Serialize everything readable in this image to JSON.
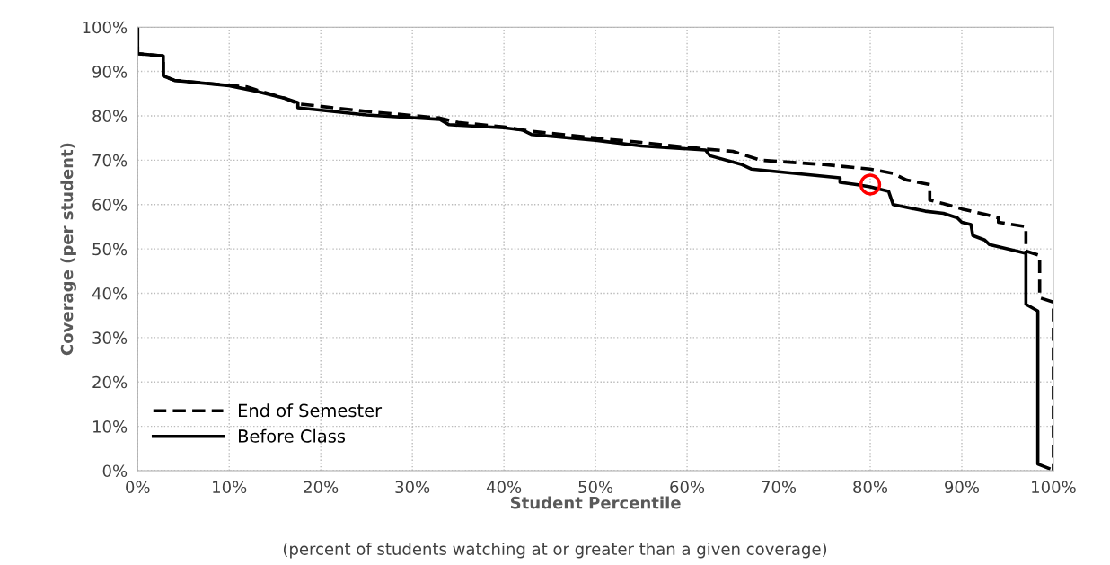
{
  "chart_data": {
    "type": "line",
    "xlabel": "Student Percentile",
    "ylabel": "Coverage (per student)",
    "annotations": [
      "(percent of students watching at or greater than a given coverage)"
    ],
    "xlim": [
      0,
      100
    ],
    "ylim": [
      0,
      100
    ],
    "xticks": [
      {
        "value": 0,
        "label": "0%"
      },
      {
        "value": 10,
        "label": "10%"
      },
      {
        "value": 20,
        "label": "20%"
      },
      {
        "value": 30,
        "label": "30%"
      },
      {
        "value": 40,
        "label": "40%"
      },
      {
        "value": 50,
        "label": "50%"
      },
      {
        "value": 60,
        "label": "60%"
      },
      {
        "value": 70,
        "label": "70%"
      },
      {
        "value": 80,
        "label": "80%"
      },
      {
        "value": 90,
        "label": "90%"
      },
      {
        "value": 100,
        "label": "100%"
      }
    ],
    "yticks": [
      {
        "value": 0,
        "label": "0%"
      },
      {
        "value": 10,
        "label": "10%"
      },
      {
        "value": 20,
        "label": "20%"
      },
      {
        "value": 30,
        "label": "30%"
      },
      {
        "value": 40,
        "label": "40%"
      },
      {
        "value": 50,
        "label": "50%"
      },
      {
        "value": 60,
        "label": "60%"
      },
      {
        "value": 70,
        "label": "70%"
      },
      {
        "value": 80,
        "label": "80%"
      },
      {
        "value": 90,
        "label": "90%"
      },
      {
        "value": 100,
        "label": "100%"
      }
    ],
    "grid": true,
    "legend": "bottom left",
    "series": [
      {
        "name": "End of Semester",
        "color": "#000000",
        "line_style": "dashed",
        "x": [
          0,
          0,
          2.8,
          2.8,
          4,
          12,
          13,
          16,
          17.5,
          25,
          33,
          35,
          40,
          43,
          50,
          55,
          62,
          65,
          68,
          75,
          80,
          82.5,
          84,
          86.5,
          86.5,
          88,
          90,
          92.5,
          94,
          94,
          97,
          97,
          98.5,
          98.5,
          100,
          100
        ],
        "values": [
          100,
          94,
          93.5,
          89,
          88,
          86.5,
          85.8,
          84,
          82.7,
          81,
          79.5,
          78.5,
          77.5,
          76.5,
          75,
          74,
          72.5,
          72,
          70,
          69,
          68,
          67,
          65.5,
          64.5,
          61,
          60.2,
          59,
          57.8,
          57,
          56,
          55,
          49.5,
          48.5,
          39,
          38,
          0
        ]
      },
      {
        "name": "Before Class",
        "color": "#000000",
        "line_style": "solid",
        "x": [
          0,
          0,
          2.8,
          2.8,
          4,
          10,
          13,
          16,
          17.5,
          17.5,
          25,
          33,
          34,
          40,
          42,
          43,
          50,
          55,
          62,
          62.5,
          66,
          67,
          76.7,
          76.7,
          78.5,
          80,
          82,
          82.5,
          86,
          88,
          89.5,
          90,
          91,
          91.2,
          92.5,
          93,
          97,
          97,
          98.3,
          98.3,
          99.5
        ],
        "values": [
          100,
          94,
          93.5,
          89,
          88,
          86.8,
          85.5,
          84,
          83,
          81.8,
          80.2,
          79.2,
          78,
          77.3,
          76.8,
          75.8,
          74.5,
          73.2,
          72.3,
          71,
          69,
          68,
          66,
          65,
          64.5,
          64,
          63,
          60,
          58.5,
          58,
          57,
          56,
          55.5,
          53,
          52,
          51,
          49,
          37.5,
          36,
          1.5,
          0.5
        ]
      },
      {
        "type": "scatter",
        "color": "#ff0000",
        "marker": "circle",
        "x": [
          80
        ],
        "values": [
          64.5
        ]
      }
    ]
  }
}
